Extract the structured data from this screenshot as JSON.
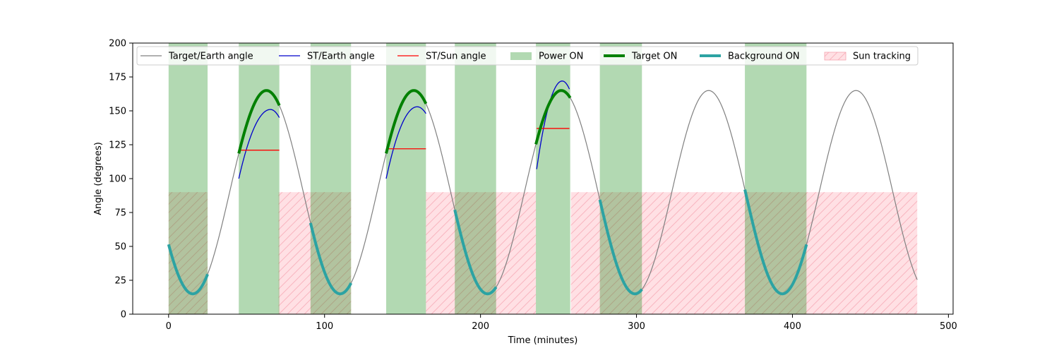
{
  "chart_data": {
    "type": "line",
    "title": "",
    "xlabel": "Time (minutes)",
    "ylabel": "Angle (degrees)",
    "xlim": [
      -23,
      503
    ],
    "ylim": [
      0,
      200
    ],
    "xticks": [
      0,
      100,
      200,
      300,
      400,
      500
    ],
    "yticks": [
      0,
      25,
      50,
      75,
      100,
      125,
      150,
      175,
      200
    ],
    "grid": false,
    "legend_position": "top",
    "target_earth_wave": {
      "min": 15,
      "max": 165,
      "period_minutes": 94.5,
      "min_at": 15.5,
      "x_range": [
        0,
        480
      ]
    },
    "series": [
      {
        "name": "Target/Earth angle",
        "color": "#808080",
        "style": "line"
      },
      {
        "name": "ST/Earth angle",
        "color": "#0000cc",
        "style": "line",
        "segments": [
          {
            "x_range": [
              45,
              71
            ],
            "start": 100,
            "peak": 151,
            "end": 145
          },
          {
            "x_range": [
              139.5,
              165
            ],
            "start": 100,
            "peak": 153,
            "end": 148
          },
          {
            "x_range": [
              236,
              257
            ],
            "start": 107,
            "peak": 172,
            "end": 166
          }
        ]
      },
      {
        "name": "ST/Sun angle",
        "color": "#ff0000",
        "style": "line",
        "segments": [
          {
            "x_range": [
              45,
              71
            ],
            "y": 121
          },
          {
            "x_range": [
              139.5,
              165
            ],
            "y": 122
          },
          {
            "x_range": [
              236,
              257
            ],
            "y": 137
          }
        ]
      },
      {
        "name": "Power ON",
        "color": "#b3d9b3",
        "style": "band",
        "intervals": [
          [
            0,
            25
          ],
          [
            45,
            71
          ],
          [
            91,
            117
          ],
          [
            139.5,
            165
          ],
          [
            183.5,
            210
          ],
          [
            235.5,
            257.5
          ],
          [
            276.5,
            303.5
          ],
          [
            369.5,
            409
          ]
        ]
      },
      {
        "name": "Target ON",
        "color": "#008000",
        "style": "thick-line",
        "intervals": [
          [
            45,
            71
          ],
          [
            139.5,
            165
          ],
          [
            235.5,
            257.5
          ]
        ]
      },
      {
        "name": "Background ON",
        "color": "#2ca3a3",
        "style": "thick-line",
        "intervals": [
          [
            0,
            25
          ],
          [
            91,
            117
          ],
          [
            183.5,
            210
          ],
          [
            276.5,
            303.5
          ],
          [
            369.5,
            409
          ]
        ]
      },
      {
        "name": "Sun tracking",
        "color": "#ffb6c1",
        "style": "hatched-band",
        "y_range": [
          0,
          90
        ],
        "intervals": [
          [
            0,
            25
          ],
          [
            70.5,
            117
          ],
          [
            165,
            235.5
          ],
          [
            258,
            480
          ]
        ]
      }
    ]
  }
}
